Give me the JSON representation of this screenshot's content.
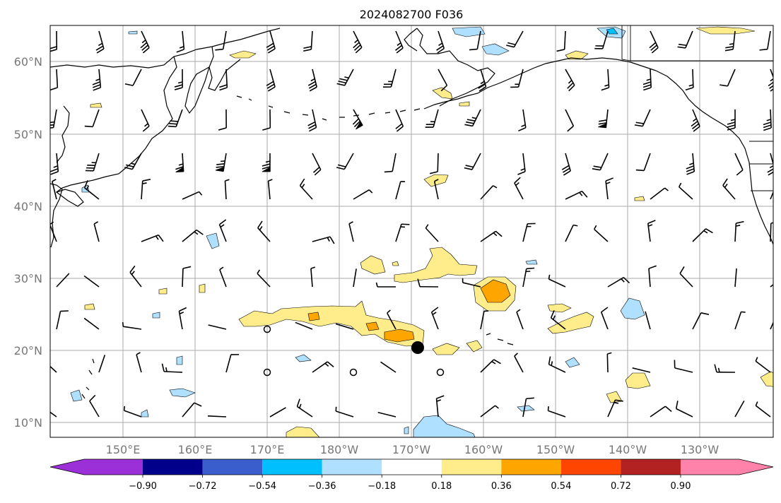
{
  "title": "2024082700 F036",
  "latitude_labels": [
    "60°N",
    "50°N",
    "40°N",
    "30°N",
    "20°N",
    "10°N"
  ],
  "longitude_labels": [
    "150°E",
    "160°E",
    "170°E",
    "180°W",
    "170°W",
    "160°W",
    "150°W",
    "140°W",
    "130°W"
  ],
  "colorbar": {
    "colors": [
      "#9b30d9",
      "#00008b",
      "#3a5fcd",
      "#00bfff",
      "#b0e0ff",
      "#ffffff",
      "#ffec8b",
      "#ffa500",
      "#ff4500",
      "#b22222",
      "#ff82ab"
    ],
    "tick_labels": [
      "−0.90",
      "−0.72",
      "−0.54",
      "−0.36",
      "−0.18",
      "0.18",
      "0.36",
      "0.54",
      "0.72",
      "0.90"
    ]
  },
  "colors": {
    "coastline": "#000000",
    "grid": "#aaaaaa",
    "label": "#777777"
  },
  "marker": "storm-center-dot"
}
